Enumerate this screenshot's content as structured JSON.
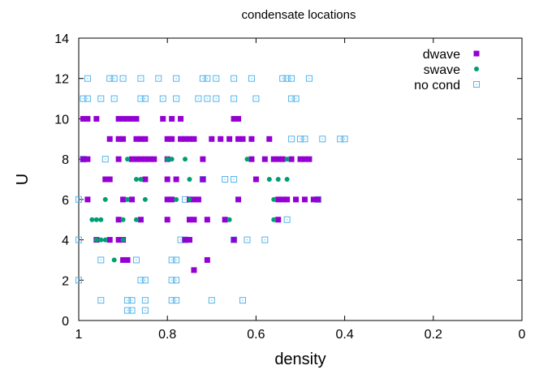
{
  "chart_data": {
    "type": "scatter",
    "title": "condensate locations",
    "xlabel": "density",
    "ylabel": "U",
    "xlim": [
      1,
      0
    ],
    "ylim": [
      0,
      14
    ],
    "xticks": [
      "1",
      "0.8",
      "0.6",
      "0.4",
      "0.2",
      "0"
    ],
    "yticks": [
      "0",
      "2",
      "4",
      "6",
      "8",
      "10",
      "12",
      "14"
    ],
    "grid": false,
    "legend_position": "top-right",
    "series": [
      {
        "name": "dwave",
        "marker": "filled-square",
        "color": "#9400d3",
        "points": [
          [
            0.99,
            10
          ],
          [
            0.98,
            10
          ],
          [
            0.96,
            10
          ],
          [
            0.91,
            10
          ],
          [
            0.9,
            10
          ],
          [
            0.89,
            10
          ],
          [
            0.88,
            10
          ],
          [
            0.87,
            10
          ],
          [
            0.81,
            10
          ],
          [
            0.79,
            10
          ],
          [
            0.77,
            10
          ],
          [
            0.65,
            10
          ],
          [
            0.64,
            10
          ],
          [
            0.93,
            9
          ],
          [
            0.91,
            9
          ],
          [
            0.9,
            9
          ],
          [
            0.87,
            9
          ],
          [
            0.86,
            9
          ],
          [
            0.85,
            9
          ],
          [
            0.8,
            9
          ],
          [
            0.79,
            9
          ],
          [
            0.77,
            9
          ],
          [
            0.76,
            9
          ],
          [
            0.75,
            9
          ],
          [
            0.74,
            9
          ],
          [
            0.7,
            9
          ],
          [
            0.68,
            9
          ],
          [
            0.66,
            9
          ],
          [
            0.64,
            9
          ],
          [
            0.63,
            9
          ],
          [
            0.61,
            9
          ],
          [
            0.57,
            9
          ],
          [
            0.99,
            8
          ],
          [
            0.98,
            8
          ],
          [
            0.91,
            8
          ],
          [
            0.88,
            8
          ],
          [
            0.87,
            8
          ],
          [
            0.86,
            8
          ],
          [
            0.85,
            8
          ],
          [
            0.84,
            8
          ],
          [
            0.83,
            8
          ],
          [
            0.8,
            8
          ],
          [
            0.72,
            8
          ],
          [
            0.61,
            8
          ],
          [
            0.58,
            8
          ],
          [
            0.56,
            8
          ],
          [
            0.55,
            8
          ],
          [
            0.54,
            8
          ],
          [
            0.52,
            8
          ],
          [
            0.5,
            8
          ],
          [
            0.49,
            8
          ],
          [
            0.48,
            8
          ],
          [
            0.94,
            7
          ],
          [
            0.93,
            7
          ],
          [
            0.85,
            7
          ],
          [
            0.8,
            7
          ],
          [
            0.78,
            7
          ],
          [
            0.72,
            7
          ],
          [
            0.6,
            7
          ],
          [
            0.98,
            6
          ],
          [
            0.9,
            6
          ],
          [
            0.88,
            6
          ],
          [
            0.8,
            6
          ],
          [
            0.79,
            6
          ],
          [
            0.75,
            6
          ],
          [
            0.74,
            6
          ],
          [
            0.73,
            6
          ],
          [
            0.64,
            6
          ],
          [
            0.55,
            6
          ],
          [
            0.54,
            6
          ],
          [
            0.53,
            6
          ],
          [
            0.51,
            6
          ],
          [
            0.49,
            6
          ],
          [
            0.47,
            6
          ],
          [
            0.46,
            6
          ],
          [
            0.91,
            5
          ],
          [
            0.86,
            5
          ],
          [
            0.8,
            5
          ],
          [
            0.75,
            5
          ],
          [
            0.74,
            5
          ],
          [
            0.71,
            5
          ],
          [
            0.67,
            5
          ],
          [
            0.55,
            5
          ],
          [
            0.96,
            4
          ],
          [
            0.93,
            4
          ],
          [
            0.91,
            4
          ],
          [
            0.9,
            4
          ],
          [
            0.76,
            4
          ],
          [
            0.75,
            4
          ],
          [
            0.65,
            4
          ],
          [
            0.9,
            3
          ],
          [
            0.89,
            3
          ],
          [
            0.71,
            3
          ],
          [
            0.74,
            2.5
          ]
        ]
      },
      {
        "name": "swave",
        "marker": "filled-circle",
        "color": "#009e73",
        "points": [
          [
            0.89,
            8
          ],
          [
            0.8,
            8
          ],
          [
            0.79,
            8
          ],
          [
            0.76,
            8
          ],
          [
            0.62,
            8
          ],
          [
            0.53,
            8
          ],
          [
            0.87,
            7
          ],
          [
            0.86,
            7
          ],
          [
            0.75,
            7
          ],
          [
            0.57,
            7
          ],
          [
            0.55,
            7
          ],
          [
            0.53,
            7
          ],
          [
            0.94,
            6
          ],
          [
            0.89,
            6
          ],
          [
            0.85,
            6
          ],
          [
            0.78,
            6
          ],
          [
            0.75,
            6
          ],
          [
            0.56,
            6
          ],
          [
            0.97,
            5
          ],
          [
            0.96,
            5
          ],
          [
            0.95,
            5
          ],
          [
            0.9,
            5
          ],
          [
            0.87,
            5
          ],
          [
            0.66,
            5
          ],
          [
            0.56,
            5
          ],
          [
            0.96,
            4
          ],
          [
            0.95,
            4
          ],
          [
            0.94,
            4
          ],
          [
            0.9,
            4
          ],
          [
            0.92,
            3
          ]
        ]
      },
      {
        "name": "no cond",
        "marker": "hollow-square",
        "color": "#56b4e9",
        "points": [
          [
            0.98,
            12
          ],
          [
            0.93,
            12
          ],
          [
            0.92,
            12
          ],
          [
            0.9,
            12
          ],
          [
            0.86,
            12
          ],
          [
            0.82,
            12
          ],
          [
            0.78,
            12
          ],
          [
            0.72,
            12
          ],
          [
            0.71,
            12
          ],
          [
            0.69,
            12
          ],
          [
            0.65,
            12
          ],
          [
            0.61,
            12
          ],
          [
            0.54,
            12
          ],
          [
            0.53,
            12
          ],
          [
            0.52,
            12
          ],
          [
            0.48,
            12
          ],
          [
            0.99,
            11
          ],
          [
            0.98,
            11
          ],
          [
            0.95,
            11
          ],
          [
            0.92,
            11
          ],
          [
            0.86,
            11
          ],
          [
            0.85,
            11
          ],
          [
            0.81,
            11
          ],
          [
            0.78,
            11
          ],
          [
            0.73,
            11
          ],
          [
            0.71,
            11
          ],
          [
            0.69,
            11
          ],
          [
            0.65,
            11
          ],
          [
            0.6,
            11
          ],
          [
            0.52,
            11
          ],
          [
            0.51,
            11
          ],
          [
            0.52,
            9
          ],
          [
            0.5,
            9
          ],
          [
            0.49,
            9
          ],
          [
            0.45,
            9
          ],
          [
            0.41,
            9
          ],
          [
            0.4,
            9
          ],
          [
            0.99,
            8
          ],
          [
            0.94,
            8
          ],
          [
            0.72,
            7
          ],
          [
            0.67,
            7
          ],
          [
            0.65,
            7
          ],
          [
            1.0,
            6
          ],
          [
            0.76,
            6
          ],
          [
            0.46,
            6
          ],
          [
            0.53,
            5
          ],
          [
            1.0,
            4
          ],
          [
            0.77,
            4
          ],
          [
            0.76,
            4
          ],
          [
            0.65,
            4
          ],
          [
            0.62,
            4
          ],
          [
            0.58,
            4
          ],
          [
            0.95,
            3
          ],
          [
            0.87,
            3
          ],
          [
            0.79,
            3
          ],
          [
            0.78,
            3
          ],
          [
            1.0,
            2
          ],
          [
            0.86,
            2
          ],
          [
            0.85,
            2
          ],
          [
            0.79,
            2
          ],
          [
            0.78,
            2
          ],
          [
            0.95,
            1
          ],
          [
            0.89,
            1
          ],
          [
            0.88,
            1
          ],
          [
            0.85,
            1
          ],
          [
            0.79,
            1
          ],
          [
            0.78,
            1
          ],
          [
            0.7,
            1
          ],
          [
            0.63,
            1
          ],
          [
            0.89,
            0.5
          ],
          [
            0.88,
            0.5
          ],
          [
            0.85,
            0.5
          ]
        ]
      }
    ]
  }
}
